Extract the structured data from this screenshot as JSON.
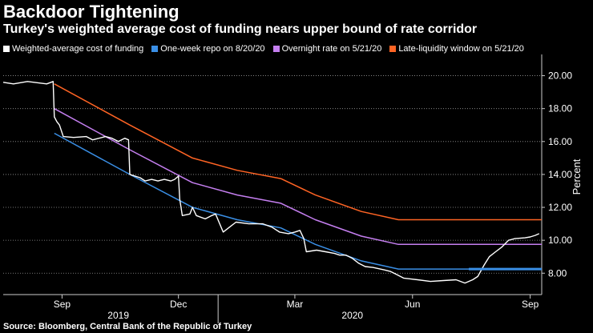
{
  "header": {
    "title": "Backdoor Tightening",
    "subtitle": "Turkey's weighted average cost of funding nears upper bound of rate corridor"
  },
  "source": "Source: Bloomberg, Central Bank of the Republic of Turkey",
  "chart_data": {
    "type": "line",
    "title": "Backdoor Tightening",
    "subtitle": "Turkey's weighted average cost of funding nears upper bound of rate corridor",
    "xlabel": "",
    "ylabel": "Percent",
    "ylim": [
      6.7,
      21.0
    ],
    "yticks": [
      8,
      10,
      12,
      14,
      16,
      18,
      20
    ],
    "ytick_labels": [
      "8.00",
      "10.00",
      "12.00",
      "14.00",
      "16.00",
      "18.00",
      "20.00"
    ],
    "xlim": [
      "2019-07-17",
      "2020-09-10"
    ],
    "xticks": [
      {
        "date": "2019-09-01",
        "label": "Sep"
      },
      {
        "date": "2019-12-01",
        "label": "Dec"
      },
      {
        "date": "2020-03-01",
        "label": "Mar"
      },
      {
        "date": "2020-06-01",
        "label": "Jun"
      },
      {
        "date": "2020-09-01",
        "label": "Sep"
      }
    ],
    "year_labels": [
      {
        "date": "2019-10-15",
        "label": "2019"
      },
      {
        "date": "2020-04-15",
        "label": "2020"
      }
    ],
    "grid": true,
    "legend_position": "top",
    "series": [
      {
        "name": "Weighted-average cost of funding",
        "color": "#ffffff",
        "points": [
          [
            "2019-07-17",
            19.6
          ],
          [
            "2019-07-25",
            19.5
          ],
          [
            "2019-08-05",
            19.65
          ],
          [
            "2019-08-20",
            19.5
          ],
          [
            "2019-08-25",
            19.65
          ],
          [
            "2019-08-26",
            17.5
          ],
          [
            "2019-08-28",
            17.2
          ],
          [
            "2019-08-30",
            17.0
          ],
          [
            "2019-09-02",
            16.3
          ],
          [
            "2019-09-10",
            16.25
          ],
          [
            "2019-09-20",
            16.3
          ],
          [
            "2019-09-25",
            16.1
          ],
          [
            "2019-10-05",
            16.3
          ],
          [
            "2019-10-10",
            16.2
          ],
          [
            "2019-10-15",
            16.0
          ],
          [
            "2019-10-20",
            16.2
          ],
          [
            "2019-10-23",
            16.1
          ],
          [
            "2019-10-24",
            14.0
          ],
          [
            "2019-11-01",
            13.8
          ],
          [
            "2019-11-05",
            13.6
          ],
          [
            "2019-11-10",
            13.7
          ],
          [
            "2019-11-15",
            13.6
          ],
          [
            "2019-11-20",
            13.7
          ],
          [
            "2019-11-25",
            13.6
          ],
          [
            "2019-11-28",
            13.7
          ],
          [
            "2019-12-01",
            13.9
          ],
          [
            "2019-12-02",
            12.5
          ],
          [
            "2019-12-04",
            11.5
          ],
          [
            "2019-12-10",
            11.6
          ],
          [
            "2019-12-12",
            12.0
          ],
          [
            "2019-12-15",
            11.5
          ],
          [
            "2019-12-22",
            11.3
          ],
          [
            "2019-12-27",
            11.5
          ],
          [
            "2019-12-30",
            11.6
          ],
          [
            "2020-01-05",
            10.5
          ],
          [
            "2020-01-10",
            10.8
          ],
          [
            "2020-01-15",
            11.1
          ],
          [
            "2020-01-25",
            11.0
          ],
          [
            "2020-02-05",
            11.0
          ],
          [
            "2020-02-12",
            10.8
          ],
          [
            "2020-02-18",
            10.5
          ],
          [
            "2020-02-25",
            10.4
          ],
          [
            "2020-03-01",
            10.5
          ],
          [
            "2020-03-05",
            10.6
          ],
          [
            "2020-03-08",
            10.1
          ],
          [
            "2020-03-10",
            9.3
          ],
          [
            "2020-03-18",
            9.4
          ],
          [
            "2020-03-25",
            9.3
          ],
          [
            "2020-04-01",
            9.2
          ],
          [
            "2020-04-05",
            9.1
          ],
          [
            "2020-04-10",
            9.1
          ],
          [
            "2020-04-15",
            8.9
          ],
          [
            "2020-04-20",
            8.6
          ],
          [
            "2020-04-25",
            8.4
          ],
          [
            "2020-05-01",
            8.35
          ],
          [
            "2020-05-10",
            8.2
          ],
          [
            "2020-05-15",
            8.1
          ],
          [
            "2020-05-20",
            7.9
          ],
          [
            "2020-05-25",
            7.7
          ],
          [
            "2020-06-05",
            7.6
          ],
          [
            "2020-06-15",
            7.5
          ],
          [
            "2020-06-25",
            7.55
          ],
          [
            "2020-07-05",
            7.6
          ],
          [
            "2020-07-12",
            7.4
          ],
          [
            "2020-07-18",
            7.6
          ],
          [
            "2020-07-22",
            7.8
          ],
          [
            "2020-07-27",
            8.5
          ],
          [
            "2020-07-31",
            9.0
          ],
          [
            "2020-08-05",
            9.3
          ],
          [
            "2020-08-10",
            9.6
          ],
          [
            "2020-08-15",
            10.0
          ],
          [
            "2020-08-20",
            10.1
          ],
          [
            "2020-08-28",
            10.15
          ],
          [
            "2020-09-01",
            10.2
          ],
          [
            "2020-09-05",
            10.3
          ],
          [
            "2020-09-08",
            10.4
          ]
        ]
      },
      {
        "name": "One-week repo on 8/20/20",
        "color": "#3a8fe6",
        "points": [
          [
            "2019-08-26",
            16.5
          ],
          [
            "2019-10-24",
            14.0
          ],
          [
            "2019-12-12",
            12.0
          ],
          [
            "2020-01-16",
            11.25
          ],
          [
            "2020-02-19",
            10.75
          ],
          [
            "2020-03-17",
            9.75
          ],
          [
            "2020-04-22",
            8.75
          ],
          [
            "2020-05-21",
            8.25
          ],
          [
            "2020-09-10",
            8.25
          ]
        ]
      },
      {
        "name": "Overnight rate on 5/21/20",
        "color": "#c57ff0",
        "points": [
          [
            "2019-08-26",
            18.0
          ],
          [
            "2019-10-24",
            15.5
          ],
          [
            "2019-12-12",
            13.5
          ],
          [
            "2020-01-16",
            12.75
          ],
          [
            "2020-02-19",
            12.25
          ],
          [
            "2020-03-17",
            11.25
          ],
          [
            "2020-04-22",
            10.25
          ],
          [
            "2020-05-21",
            9.75
          ],
          [
            "2020-09-10",
            9.75
          ]
        ]
      },
      {
        "name": "Late-liquidity window on 5/21/20",
        "color": "#ff6424",
        "points": [
          [
            "2019-08-26",
            19.5
          ],
          [
            "2019-10-24",
            17.0
          ],
          [
            "2019-12-12",
            15.0
          ],
          [
            "2020-01-16",
            14.25
          ],
          [
            "2020-02-19",
            13.75
          ],
          [
            "2020-03-17",
            12.75
          ],
          [
            "2020-04-22",
            11.75
          ],
          [
            "2020-05-21",
            11.25
          ],
          [
            "2020-09-10",
            11.25
          ]
        ]
      }
    ]
  }
}
